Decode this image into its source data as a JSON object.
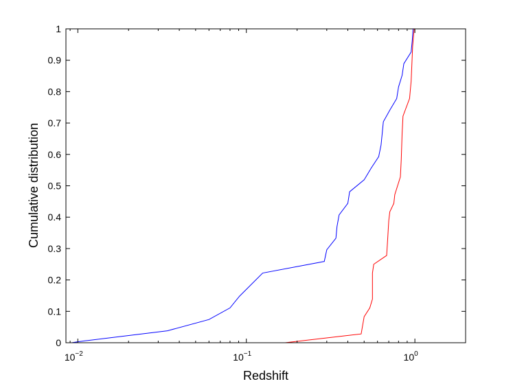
{
  "chart_data": {
    "type": "line",
    "title": "",
    "xlabel": "Redshift",
    "ylabel": "Cumulative distribution",
    "xscale": "log",
    "xlim": [
      0.0085,
      2.0
    ],
    "ylim": [
      0,
      1
    ],
    "grid": false,
    "legend": "none",
    "x_ticks": [
      {
        "value": 0.01,
        "base": "10",
        "exp": "−2"
      },
      {
        "value": 0.1,
        "base": "10",
        "exp": "−1"
      },
      {
        "value": 1,
        "base": "10",
        "exp": "0"
      }
    ],
    "y_ticks": [
      "0",
      "0.1",
      "0.2",
      "0.3",
      "0.4",
      "0.5",
      "0.6",
      "0.7",
      "0.8",
      "0.9",
      "1"
    ],
    "series": [
      {
        "color": "#0000ff",
        "points": [
          [
            0.0092,
            0.0
          ],
          [
            0.01,
            0.003
          ],
          [
            0.011,
            0.006
          ],
          [
            0.034,
            0.038
          ],
          [
            0.06,
            0.074
          ],
          [
            0.08,
            0.111
          ],
          [
            0.091,
            0.148
          ],
          [
            0.125,
            0.222
          ],
          [
            0.29,
            0.259
          ],
          [
            0.3,
            0.296
          ],
          [
            0.34,
            0.333
          ],
          [
            0.345,
            0.37
          ],
          [
            0.355,
            0.407
          ],
          [
            0.4,
            0.444
          ],
          [
            0.41,
            0.481
          ],
          [
            0.5,
            0.519
          ],
          [
            0.55,
            0.556
          ],
          [
            0.61,
            0.593
          ],
          [
            0.63,
            0.63
          ],
          [
            0.64,
            0.667
          ],
          [
            0.65,
            0.704
          ],
          [
            0.71,
            0.741
          ],
          [
            0.78,
            0.778
          ],
          [
            0.8,
            0.815
          ],
          [
            0.84,
            0.852
          ],
          [
            0.86,
            0.889
          ],
          [
            0.95,
            0.926
          ],
          [
            0.965,
            0.963
          ],
          [
            0.975,
            1.0
          ]
        ]
      },
      {
        "color": "#ff0000",
        "points": [
          [
            0.17,
            0.0
          ],
          [
            0.48,
            0.028
          ],
          [
            0.5,
            0.083
          ],
          [
            0.54,
            0.111
          ],
          [
            0.56,
            0.139
          ],
          [
            0.56,
            0.222
          ],
          [
            0.57,
            0.25
          ],
          [
            0.68,
            0.278
          ],
          [
            0.69,
            0.333
          ],
          [
            0.7,
            0.389
          ],
          [
            0.71,
            0.417
          ],
          [
            0.75,
            0.444
          ],
          [
            0.76,
            0.472
          ],
          [
            0.82,
            0.528
          ],
          [
            0.83,
            0.583
          ],
          [
            0.84,
            0.667
          ],
          [
            0.85,
            0.722
          ],
          [
            0.93,
            0.778
          ],
          [
            0.95,
            0.833
          ],
          [
            0.96,
            0.889
          ],
          [
            0.97,
            0.944
          ],
          [
            0.99,
            1.0
          ]
        ]
      }
    ]
  }
}
